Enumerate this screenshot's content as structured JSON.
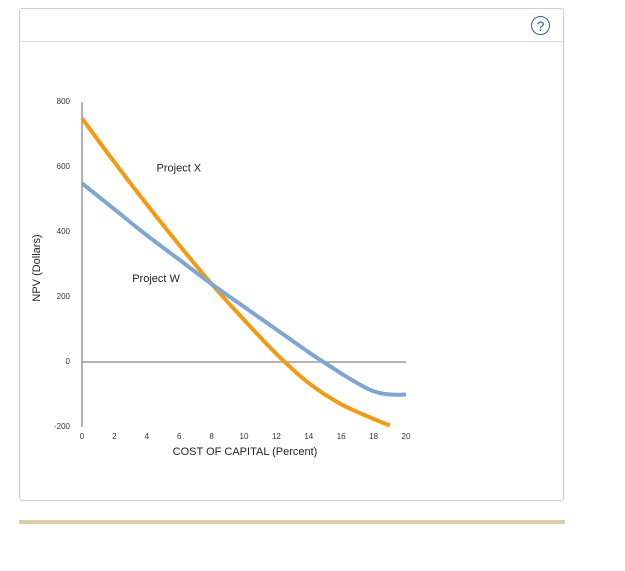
{
  "help": {
    "label": "?"
  },
  "chart_data": {
    "type": "line",
    "xlabel": "COST OF CAPITAL (Percent)",
    "ylabel": "NPV (Dollars)",
    "xlim": [
      0,
      20
    ],
    "ylim": [
      -200,
      800
    ],
    "xticks": [
      0,
      2,
      4,
      6,
      8,
      10,
      12,
      14,
      16,
      18,
      20
    ],
    "yticks": [
      800,
      600,
      400,
      200,
      0,
      -200
    ],
    "series": [
      {
        "name": "Project X",
        "color": "#f59a0f",
        "x": [
          0,
          2,
          4,
          6,
          8,
          10,
          12,
          14,
          16,
          18,
          19
        ],
        "y": [
          750,
          615,
          485,
          360,
          240,
          130,
          25,
          -65,
          -130,
          -175,
          -195
        ]
      },
      {
        "name": "Project W",
        "color": "#7ea6d4",
        "x": [
          0,
          2,
          4,
          6,
          8,
          10,
          12,
          14,
          16,
          17,
          18,
          19,
          20
        ],
        "y": [
          550,
          470,
          390,
          315,
          240,
          170,
          100,
          30,
          -35,
          -65,
          -90,
          -100,
          -100
        ]
      }
    ],
    "annotations": [
      {
        "text": "Project X",
        "series": "Project X",
        "x": 4.6,
        "y": 595
      },
      {
        "text": "Project W",
        "series": "Project W",
        "x": 3.1,
        "y": 255
      }
    ]
  }
}
